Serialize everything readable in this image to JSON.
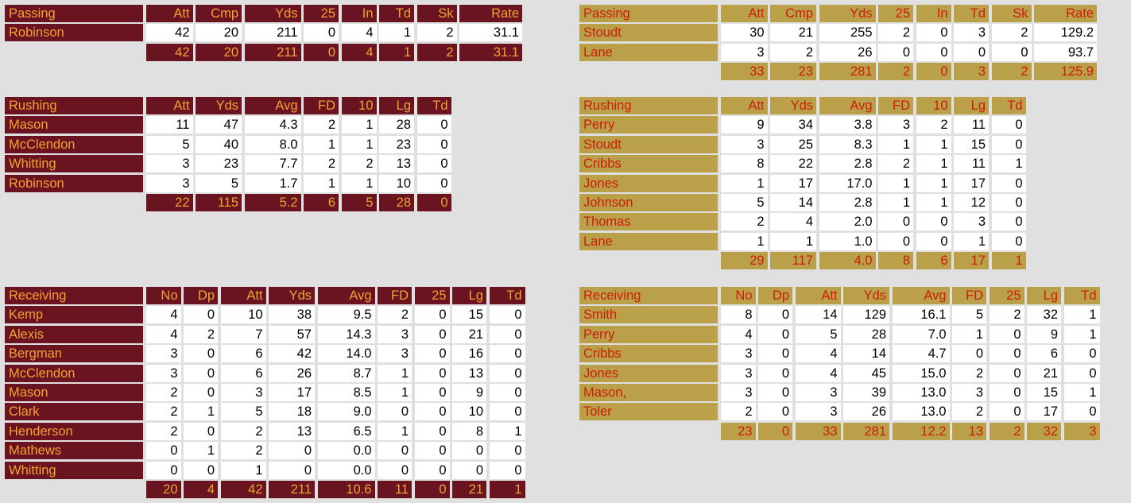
{
  "theme": {
    "maroon_bg": "#6b1421",
    "maroon_text": "#f4a231",
    "gold_bg": "#b9a049",
    "gold_text": "#d01a0a",
    "page_bg": "#e0e0e0"
  },
  "left": {
    "passing": {
      "title": "Passing",
      "headers": [
        "Att",
        "Cmp",
        "Yds",
        "25",
        "In",
        "Td",
        "Sk",
        "Rate"
      ],
      "rows": [
        {
          "name": "Robinson",
          "values": [
            "42",
            "20",
            "211",
            "0",
            "4",
            "1",
            "2",
            "31.1"
          ]
        }
      ],
      "totals": [
        "42",
        "20",
        "211",
        "0",
        "4",
        "1",
        "2",
        "31.1"
      ]
    },
    "rushing": {
      "title": "Rushing",
      "headers": [
        "Att",
        "Yds",
        "Avg",
        "FD",
        "10",
        "Lg",
        "Td"
      ],
      "rows": [
        {
          "name": "Mason",
          "values": [
            "11",
            "47",
            "4.3",
            "2",
            "1",
            "28",
            "0"
          ]
        },
        {
          "name": "McClendon",
          "values": [
            "5",
            "40",
            "8.0",
            "1",
            "1",
            "23",
            "0"
          ]
        },
        {
          "name": "Whitting",
          "values": [
            "3",
            "23",
            "7.7",
            "2",
            "2",
            "13",
            "0"
          ]
        },
        {
          "name": "Robinson",
          "values": [
            "3",
            "5",
            "1.7",
            "1",
            "1",
            "10",
            "0"
          ]
        }
      ],
      "totals": [
        "22",
        "115",
        "5.2",
        "6",
        "5",
        "28",
        "0"
      ]
    },
    "receiving": {
      "title": "Receiving",
      "headers": [
        "No",
        "Dp",
        "Att",
        "Yds",
        "Avg",
        "FD",
        "25",
        "Lg",
        "Td"
      ],
      "rows": [
        {
          "name": "Kemp",
          "values": [
            "4",
            "0",
            "10",
            "38",
            "9.5",
            "2",
            "0",
            "15",
            "0"
          ]
        },
        {
          "name": "Alexis",
          "values": [
            "4",
            "2",
            "7",
            "57",
            "14.3",
            "3",
            "0",
            "21",
            "0"
          ]
        },
        {
          "name": "Bergman",
          "values": [
            "3",
            "0",
            "6",
            "42",
            "14.0",
            "3",
            "0",
            "16",
            "0"
          ]
        },
        {
          "name": "McClendon",
          "values": [
            "3",
            "0",
            "6",
            "26",
            "8.7",
            "1",
            "0",
            "13",
            "0"
          ]
        },
        {
          "name": "Mason",
          "values": [
            "2",
            "0",
            "3",
            "17",
            "8.5",
            "1",
            "0",
            "9",
            "0"
          ]
        },
        {
          "name": "Clark",
          "values": [
            "2",
            "1",
            "5",
            "18",
            "9.0",
            "0",
            "0",
            "10",
            "0"
          ]
        },
        {
          "name": "Henderson",
          "values": [
            "2",
            "0",
            "2",
            "13",
            "6.5",
            "1",
            "0",
            "8",
            "1"
          ]
        },
        {
          "name": "Mathews",
          "values": [
            "0",
            "1",
            "2",
            "0",
            "0.0",
            "0",
            "0",
            "0",
            "0"
          ]
        },
        {
          "name": "Whitting",
          "values": [
            "0",
            "0",
            "1",
            "0",
            "0.0",
            "0",
            "0",
            "0",
            "0"
          ]
        }
      ],
      "totals": [
        "20",
        "4",
        "42",
        "211",
        "10.6",
        "11",
        "0",
        "21",
        "1"
      ]
    }
  },
  "right": {
    "passing": {
      "title": "Passing",
      "headers": [
        "Att",
        "Cmp",
        "Yds",
        "25",
        "In",
        "Td",
        "Sk",
        "Rate"
      ],
      "rows": [
        {
          "name": "Stoudt",
          "values": [
            "30",
            "21",
            "255",
            "2",
            "0",
            "3",
            "2",
            "129.2"
          ]
        },
        {
          "name": "Lane",
          "values": [
            "3",
            "2",
            "26",
            "0",
            "0",
            "0",
            "0",
            "93.7"
          ]
        }
      ],
      "totals": [
        "33",
        "23",
        "281",
        "2",
        "0",
        "3",
        "2",
        "125.9"
      ]
    },
    "rushing": {
      "title": "Rushing",
      "headers": [
        "Att",
        "Yds",
        "Avg",
        "FD",
        "10",
        "Lg",
        "Td"
      ],
      "rows": [
        {
          "name": "Perry",
          "values": [
            "9",
            "34",
            "3.8",
            "3",
            "2",
            "11",
            "0"
          ]
        },
        {
          "name": "Stoudt",
          "values": [
            "3",
            "25",
            "8.3",
            "1",
            "1",
            "15",
            "0"
          ]
        },
        {
          "name": "Cribbs",
          "values": [
            "8",
            "22",
            "2.8",
            "2",
            "1",
            "11",
            "1"
          ]
        },
        {
          "name": "Jones",
          "values": [
            "1",
            "17",
            "17.0",
            "1",
            "1",
            "17",
            "0"
          ]
        },
        {
          "name": "Johnson",
          "values": [
            "5",
            "14",
            "2.8",
            "1",
            "1",
            "12",
            "0"
          ]
        },
        {
          "name": "Thomas",
          "values": [
            "2",
            "4",
            "2.0",
            "0",
            "0",
            "3",
            "0"
          ]
        },
        {
          "name": "Lane",
          "values": [
            "1",
            "1",
            "1.0",
            "0",
            "0",
            "1",
            "0"
          ]
        }
      ],
      "totals": [
        "29",
        "117",
        "4.0",
        "8",
        "6",
        "17",
        "1"
      ]
    },
    "receiving": {
      "title": "Receiving",
      "headers": [
        "No",
        "Dp",
        "Att",
        "Yds",
        "Avg",
        "FD",
        "25",
        "Lg",
        "Td"
      ],
      "rows": [
        {
          "name": "Smith",
          "values": [
            "8",
            "0",
            "14",
            "129",
            "16.1",
            "5",
            "2",
            "32",
            "1"
          ]
        },
        {
          "name": "Perry",
          "values": [
            "4",
            "0",
            "5",
            "28",
            "7.0",
            "1",
            "0",
            "9",
            "1"
          ]
        },
        {
          "name": "Cribbs",
          "values": [
            "3",
            "0",
            "4",
            "14",
            "4.7",
            "0",
            "0",
            "6",
            "0"
          ]
        },
        {
          "name": "Jones",
          "values": [
            "3",
            "0",
            "4",
            "45",
            "15.0",
            "2",
            "0",
            "21",
            "0"
          ]
        },
        {
          "name": "Mason,",
          "values": [
            "3",
            "0",
            "3",
            "39",
            "13.0",
            "3",
            "0",
            "15",
            "1"
          ]
        },
        {
          "name": "Toler",
          "values": [
            "2",
            "0",
            "3",
            "26",
            "13.0",
            "2",
            "0",
            "17",
            "0"
          ]
        }
      ],
      "totals": [
        "23",
        "0",
        "33",
        "281",
        "12.2",
        "13",
        "2",
        "32",
        "3"
      ]
    }
  }
}
